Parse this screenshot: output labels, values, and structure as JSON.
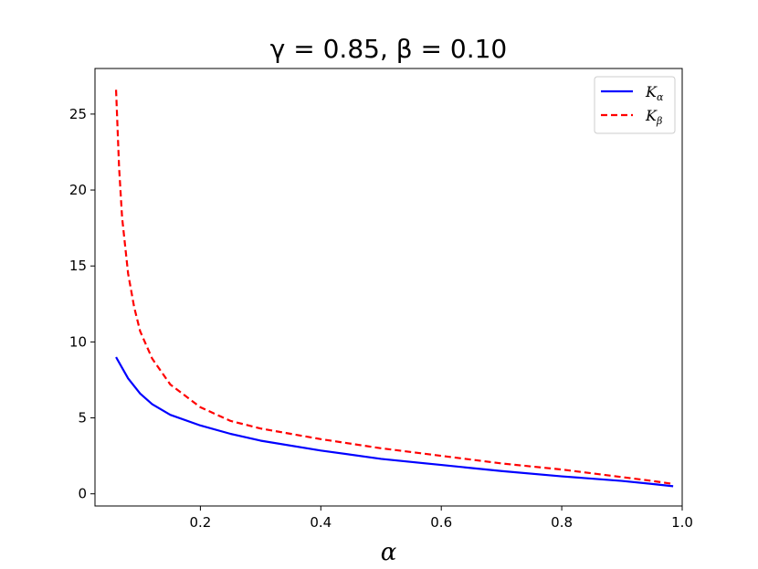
{
  "chart_data": {
    "type": "line",
    "title": "γ = 0.85, β = 0.10",
    "xlabel": "α",
    "ylabel": "",
    "xlim": [
      0.025,
      1.0
    ],
    "ylim": [
      -0.8,
      28
    ],
    "x_ticks": [
      0.2,
      0.4,
      0.6,
      0.8,
      1.0
    ],
    "x_tick_labels": [
      "0.2",
      "0.4",
      "0.6",
      "0.8",
      "1.0"
    ],
    "y_ticks": [
      0,
      5,
      10,
      15,
      20,
      25
    ],
    "y_tick_labels": [
      "0",
      "5",
      "10",
      "15",
      "20",
      "25"
    ],
    "grid": false,
    "legend_position": "top-right",
    "series": [
      {
        "name": "K",
        "name_subscript": "α",
        "color": "#0000ff",
        "style": "solid",
        "x": [
          0.06,
          0.08,
          0.1,
          0.12,
          0.15,
          0.2,
          0.25,
          0.3,
          0.4,
          0.5,
          0.6,
          0.7,
          0.8,
          0.9,
          0.95,
          0.985
        ],
        "y": [
          9.0,
          7.6,
          6.6,
          5.9,
          5.2,
          4.5,
          3.95,
          3.5,
          2.85,
          2.3,
          1.9,
          1.5,
          1.15,
          0.85,
          0.65,
          0.5
        ]
      },
      {
        "name": "K",
        "name_subscript": "β",
        "color": "#ff0000",
        "style": "dashed",
        "x": [
          0.06,
          0.065,
          0.07,
          0.08,
          0.09,
          0.1,
          0.12,
          0.15,
          0.2,
          0.25,
          0.3,
          0.4,
          0.5,
          0.6,
          0.7,
          0.8,
          0.9,
          0.95,
          0.985
        ],
        "y": [
          26.6,
          21.5,
          18.2,
          14.5,
          12.3,
          10.7,
          8.9,
          7.2,
          5.7,
          4.8,
          4.3,
          3.6,
          3.0,
          2.5,
          2.0,
          1.6,
          1.1,
          0.85,
          0.65
        ]
      }
    ]
  }
}
